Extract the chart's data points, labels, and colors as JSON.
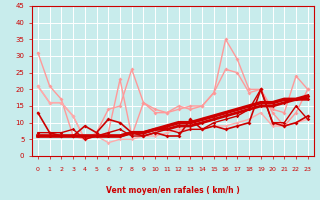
{
  "background_color": "#c8ecec",
  "grid_color": "#ffffff",
  "xlabel": "Vent moyen/en rafales ( km/h )",
  "xlim": [
    -0.5,
    23.5
  ],
  "ylim": [
    0,
    45
  ],
  "yticks": [
    0,
    5,
    10,
    15,
    20,
    25,
    30,
    35,
    40,
    45
  ],
  "xticks": [
    0,
    1,
    2,
    3,
    4,
    5,
    6,
    7,
    8,
    9,
    10,
    11,
    12,
    13,
    14,
    15,
    16,
    17,
    18,
    19,
    20,
    21,
    22,
    23
  ],
  "series": [
    {
      "x": [
        0,
        1,
        2,
        3,
        4,
        5,
        6,
        7,
        8,
        9,
        10,
        11,
        12,
        13,
        14,
        15,
        16,
        17,
        18,
        19,
        20,
        21,
        22,
        23
      ],
      "y": [
        31,
        21,
        17,
        6,
        5,
        7,
        14,
        15,
        26,
        16,
        14,
        13,
        14,
        15,
        15,
        19,
        35,
        29,
        20,
        20,
        14,
        13,
        24,
        20
      ],
      "color": "#ff9999",
      "lw": 1.0,
      "marker": "D",
      "ms": 2.0
    },
    {
      "x": [
        0,
        1,
        2,
        3,
        4,
        5,
        6,
        7,
        8,
        9,
        10,
        11,
        12,
        13,
        14,
        15,
        16,
        17,
        18,
        19,
        20,
        21,
        22,
        23
      ],
      "y": [
        21,
        16,
        16,
        12,
        5,
        6,
        7,
        23,
        6,
        16,
        13,
        13,
        15,
        14,
        15,
        19,
        26,
        25,
        19,
        20,
        13,
        9,
        13,
        20
      ],
      "color": "#ff9999",
      "lw": 1.0,
      "marker": "D",
      "ms": 2.0
    },
    {
      "x": [
        0,
        1,
        2,
        3,
        4,
        5,
        6,
        7,
        8,
        9,
        10,
        11,
        12,
        13,
        14,
        15,
        16,
        17,
        18,
        19,
        20,
        21,
        22,
        23
      ],
      "y": [
        21,
        16,
        16,
        12,
        5,
        6,
        4,
        5,
        5,
        6,
        6,
        7,
        8,
        8,
        8,
        9,
        9,
        10,
        11,
        13,
        9,
        9,
        10,
        11
      ],
      "color": "#ffaaaa",
      "lw": 1.0,
      "marker": "D",
      "ms": 1.8
    },
    {
      "x": [
        0,
        1,
        2,
        3,
        4,
        5,
        6,
        7,
        8,
        9,
        10,
        11,
        12,
        13,
        14,
        15,
        16,
        17,
        18,
        19,
        20,
        21,
        22,
        23
      ],
      "y": [
        13,
        7,
        6,
        6,
        9,
        7,
        11,
        10,
        7,
        6,
        7,
        6,
        6,
        11,
        8,
        9,
        8,
        9,
        10,
        20,
        10,
        9,
        10,
        12
      ],
      "color": "#cc0000",
      "lw": 1.2,
      "marker": "D",
      "ms": 2.0
    },
    {
      "x": [
        0,
        1,
        2,
        3,
        4,
        5,
        6,
        7,
        8,
        9,
        10,
        11,
        12,
        13,
        14,
        15,
        16,
        17,
        18,
        19,
        20,
        21,
        22,
        23
      ],
      "y": [
        7,
        7,
        7,
        8,
        5,
        6,
        7,
        8,
        6,
        6,
        7,
        8,
        7,
        8,
        8,
        10,
        11,
        12,
        14,
        20,
        10,
        10,
        15,
        11
      ],
      "color": "#cc0000",
      "lw": 1.0,
      "marker": "D",
      "ms": 1.8
    },
    {
      "x": [
        0,
        1,
        2,
        3,
        4,
        5,
        6,
        7,
        8,
        9,
        10,
        11,
        12,
        13,
        14,
        15,
        16,
        17,
        18,
        19,
        20,
        21,
        22,
        23
      ],
      "y": [
        6,
        6,
        6,
        6,
        6,
        6,
        6,
        6,
        7,
        7,
        8,
        8,
        9,
        9,
        10,
        11,
        12,
        13,
        14,
        15,
        15,
        16,
        17,
        17
      ],
      "color": "#cc0000",
      "lw": 2.0,
      "marker": "D",
      "ms": 1.8
    },
    {
      "x": [
        0,
        1,
        2,
        3,
        4,
        5,
        6,
        7,
        8,
        9,
        10,
        11,
        12,
        13,
        14,
        15,
        16,
        17,
        18,
        19,
        20,
        21,
        22,
        23
      ],
      "y": [
        6,
        6,
        6,
        6,
        6,
        6,
        6,
        6,
        7,
        7,
        8,
        9,
        10,
        10,
        11,
        12,
        13,
        14,
        15,
        16,
        16,
        17,
        17,
        18
      ],
      "color": "#cc0000",
      "lw": 2.5,
      "marker": "D",
      "ms": 1.8
    }
  ],
  "wind_arrows": [
    "→",
    "↗",
    "→",
    "↗",
    "↗",
    "→",
    "↗",
    "→",
    "→",
    "↗",
    "→",
    "↗",
    "↗",
    "↘",
    "↘",
    "↙",
    "↙",
    "↗",
    "→",
    "→",
    "↗",
    "→",
    "↗",
    "↗"
  ]
}
